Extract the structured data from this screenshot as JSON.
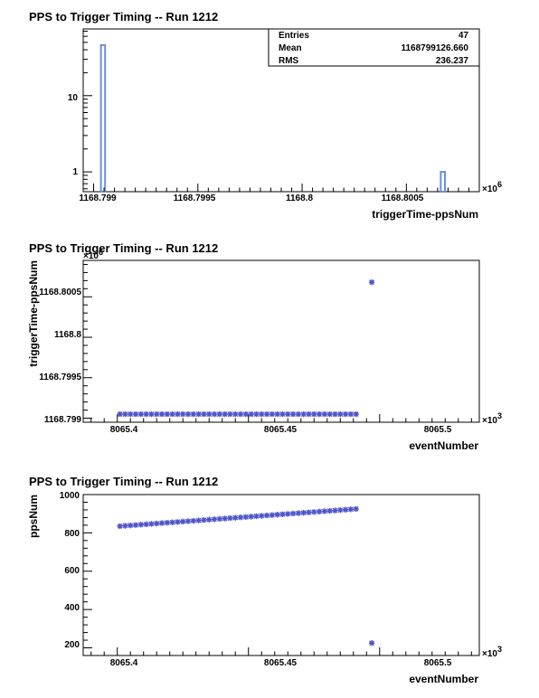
{
  "plots": [
    {
      "title": "PPS to Trigger Timing -- Run 1212",
      "xlabel": "triggerTime-ppsNum",
      "x_multiplier": "×10",
      "x_exponent": "6",
      "x_ticks": [
        "1168.799",
        "1168.7995",
        "1168.8",
        "1168.8005"
      ],
      "y_ticks": [
        "1",
        "10"
      ],
      "stats": {
        "rows": [
          {
            "label": "Entries",
            "value": "47"
          },
          {
            "label": "Mean",
            "value": "1168799126.660"
          },
          {
            "label": "RMS",
            "value": "236.237"
          }
        ]
      }
    },
    {
      "title": "PPS to Trigger Timing -- Run 1212",
      "xlabel": "eventNumber",
      "ylabel": "triggerTime-ppsNum",
      "x_multiplier": "×10",
      "x_exponent": "3",
      "y_multiplier": "×10",
      "y_exponent": "6",
      "x_ticks": [
        "8065.4",
        "8065.45",
        "8065.5"
      ],
      "y_ticks": [
        "1168.799",
        "1168.7995",
        "1168.8",
        "1168.8005"
      ]
    },
    {
      "title": "PPS to Trigger Timing -- Run 1212",
      "xlabel": "eventNumber",
      "ylabel": "ppsNum",
      "x_multiplier": "×10",
      "x_exponent": "3",
      "x_ticks": [
        "8065.4",
        "8065.45",
        "8065.5"
      ],
      "y_ticks": [
        "200",
        "400",
        "600",
        "800",
        "1000"
      ]
    }
  ],
  "chart_data": [
    {
      "type": "bar",
      "title": "PPS to Trigger Timing -- Run 1212",
      "xlabel": "triggerTime-ppsNum",
      "ylabel": "",
      "xlim": [
        1168798.95,
        1168800.85
      ],
      "ylim": [
        0.55,
        75
      ],
      "y_log": true,
      "bars": [
        {
          "x0": 1168799.035,
          "x1": 1168799.055,
          "value": 46
        },
        {
          "x0": 1168800.665,
          "x1": 1168800.685,
          "value": 1
        }
      ],
      "color": "#6b8fd6"
    },
    {
      "type": "scatter",
      "title": "PPS to Trigger Timing -- Run 1212",
      "xlabel": "eventNumber",
      "ylabel": "triggerTime-ppsNum",
      "xlim": [
        8065.387,
        8065.538
      ],
      "ylim": [
        1168798.95,
        1168800.95
      ],
      "x_start": 8065.401,
      "x_step": 0.002,
      "n_points": 46,
      "y_value": 1168799.05,
      "extra_point": {
        "x": 8065.497,
        "y": 1168800.68
      },
      "color": "#4f54c8"
    },
    {
      "type": "scatter",
      "title": "PPS to Trigger Timing -- Run 1212",
      "xlabel": "eventNumber",
      "ylabel": "ppsNum",
      "xlim": [
        8065.387,
        8065.538
      ],
      "ylim": [
        160,
        1000
      ],
      "x_start": 8065.401,
      "x_step": 0.002,
      "y_start": 835,
      "y_step": 2,
      "n_points": 46,
      "extra_point": {
        "x": 8065.497,
        "y": 225
      },
      "color": "#4f54c8"
    }
  ]
}
